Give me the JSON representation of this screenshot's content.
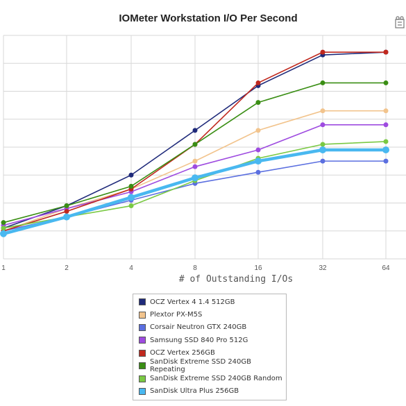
{
  "chart_data": {
    "type": "line",
    "title": "IOMeter Workstation I/O Per Second",
    "xlabel": "# of Outstanding I/Os",
    "ylabel": "",
    "x": [
      1,
      2,
      4,
      8,
      16,
      32,
      64
    ],
    "x_tick_labels": [
      "1",
      "2",
      "4",
      "8",
      "16",
      "32",
      "64"
    ],
    "ylim": [
      0,
      8
    ],
    "grid": true,
    "legend_position": "bottom",
    "series": [
      {
        "name": "OCZ Vertex 4 1.4 512GB",
        "color": "#1f2a7a",
        "values": [
          1.1,
          1.9,
          3.0,
          4.6,
          6.2,
          7.3,
          7.4
        ]
      },
      {
        "name": "Plextor PX-M5S",
        "color": "#f2c48d",
        "values": [
          1.0,
          1.8,
          2.5,
          3.5,
          4.6,
          5.3,
          5.3
        ]
      },
      {
        "name": "Corsair Neutron GTX 240GB",
        "color": "#5b6fe0",
        "values": [
          1.0,
          1.5,
          2.1,
          2.7,
          3.1,
          3.5,
          3.5
        ]
      },
      {
        "name": "Samsung SSD 840 Pro 512G",
        "color": "#9e4be0",
        "values": [
          1.2,
          1.8,
          2.4,
          3.3,
          3.9,
          4.8,
          4.8
        ]
      },
      {
        "name": "OCZ Vertex 256GB",
        "color": "#c0281e",
        "values": [
          1.0,
          1.7,
          2.5,
          4.1,
          6.3,
          7.4,
          7.4
        ]
      },
      {
        "name": "SanDisk Extreme SSD 240GB Repeating",
        "color": "#3a8e14",
        "values": [
          1.3,
          1.9,
          2.6,
          4.1,
          5.6,
          6.3,
          6.3
        ]
      },
      {
        "name": "SanDisk Extreme SSD 240GB Random",
        "color": "#7ac943",
        "values": [
          1.1,
          1.5,
          1.9,
          2.8,
          3.6,
          4.1,
          4.2
        ]
      },
      {
        "name": "SanDisk Ultra Plus 256GB",
        "color": "#49b8f0",
        "values": [
          0.9,
          1.5,
          2.2,
          2.9,
          3.5,
          3.9,
          3.9
        ]
      }
    ]
  },
  "icons": {
    "corner": "tool-icon"
  }
}
